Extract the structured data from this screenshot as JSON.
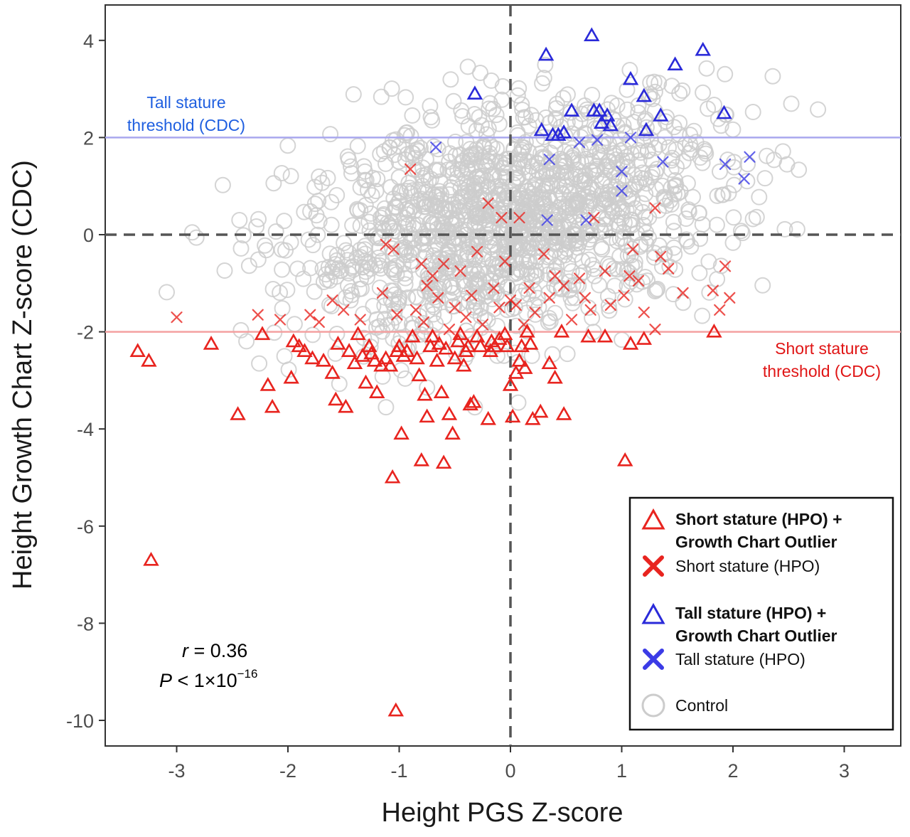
{
  "chart_data": {
    "type": "scatter",
    "xlabel": "Height PGS Z-score",
    "ylabel": "Height Growth Chart Z-score (CDC)",
    "xlim": [
      -3.65,
      3.45
    ],
    "ylim": [
      -10.5,
      4.75
    ],
    "x_ticks": [
      "-3",
      "-2",
      "-1",
      "0",
      "1",
      "2",
      "3"
    ],
    "y_ticks": [
      "4",
      "2",
      "0",
      "-2",
      "-4",
      "-6",
      "-8",
      "-10"
    ],
    "grid": false,
    "legend_position": "bottom-right",
    "reference_lines": [
      {
        "orientation": "vertical",
        "value": 0,
        "style": "dashed",
        "color": "#555555"
      },
      {
        "orientation": "horizontal",
        "value": 0,
        "style": "dashed",
        "color": "#555555"
      }
    ],
    "thresholds": [
      {
        "value": 2,
        "label_line1": "Tall stature",
        "label_line2": "threshold (CDC)",
        "color": "#1f5fe0",
        "line_color": "#a9a8ee"
      },
      {
        "value": -2,
        "label_line1": "Short stature",
        "label_line2": "threshold (CDC)",
        "color": "#e01515",
        "line_color": "#f4a0a0"
      }
    ],
    "annotation": {
      "r_symbol": "r",
      "r_text": " = 0.36",
      "p_symbol": "P",
      "p_text": " < 1×10",
      "p_exponent": "−16"
    },
    "legend": [
      {
        "marker": "triangle",
        "color": "#e8241f",
        "line1": "Short stature (HPO) +",
        "line2": "Growth Chart Outlier",
        "bold": true
      },
      {
        "marker": "cross",
        "color": "#e8241f",
        "line1": "Short stature (HPO)",
        "line2": "",
        "bold": false
      },
      {
        "marker": "triangle",
        "color": "#2a2ad9",
        "line1": "Tall stature (HPO) +",
        "line2": "Growth Chart Outlier",
        "bold": true
      },
      {
        "marker": "cross",
        "color": "#3b3be6",
        "line1": "Tall stature (HPO)",
        "line2": "",
        "bold": false
      },
      {
        "marker": "circle",
        "color": "#cccccc",
        "line1": "Control",
        "line2": "",
        "bold": false
      }
    ],
    "series": [
      {
        "name": "Short stature (HPO) + Growth Chart Outlier",
        "marker": "triangle",
        "color": "#e8241f",
        "points": [
          [
            -3.35,
            -2.4
          ],
          [
            -3.25,
            -2.6
          ],
          [
            -3.23,
            -6.7
          ],
          [
            -2.69,
            -2.25
          ],
          [
            -2.45,
            -3.7
          ],
          [
            -2.23,
            -2.05
          ],
          [
            -2.18,
            -3.1
          ],
          [
            -2.14,
            -3.55
          ],
          [
            -1.97,
            -2.95
          ],
          [
            -1.95,
            -2.2
          ],
          [
            -1.9,
            -2.3
          ],
          [
            -1.85,
            -2.4
          ],
          [
            -1.78,
            -2.55
          ],
          [
            -1.68,
            -2.6
          ],
          [
            -1.6,
            -2.85
          ],
          [
            -1.57,
            -3.4
          ],
          [
            -1.55,
            -2.25
          ],
          [
            -1.48,
            -3.55
          ],
          [
            -1.45,
            -2.4
          ],
          [
            -1.37,
            -2.05
          ],
          [
            -1.33,
            -2.5
          ],
          [
            -1.3,
            -3.05
          ],
          [
            -1.27,
            -2.3
          ],
          [
            -1.25,
            -2.45
          ],
          [
            -1.22,
            -2.6
          ],
          [
            -1.2,
            -3.25
          ],
          [
            -1.16,
            -2.7
          ],
          [
            -1.12,
            -2.55
          ],
          [
            -1.08,
            -2.7
          ],
          [
            -1.06,
            -5.0
          ],
          [
            -1.02,
            -2.4
          ],
          [
            -1.0,
            -2.3
          ],
          [
            -0.98,
            -4.1
          ],
          [
            -0.96,
            -2.5
          ],
          [
            -0.93,
            -2.4
          ],
          [
            -0.88,
            -2.1
          ],
          [
            -0.84,
            -2.55
          ],
          [
            -0.82,
            -2.9
          ],
          [
            -0.8,
            -4.65
          ],
          [
            -0.77,
            -3.3
          ],
          [
            -0.75,
            -3.75
          ],
          [
            -0.72,
            -2.3
          ],
          [
            -0.7,
            -2.1
          ],
          [
            -0.66,
            -2.6
          ],
          [
            -0.62,
            -3.25
          ],
          [
            -0.6,
            -4.7
          ],
          [
            -0.58,
            -2.35
          ],
          [
            -0.55,
            -3.7
          ],
          [
            -0.52,
            -4.1
          ],
          [
            -0.5,
            -2.55
          ],
          [
            -0.47,
            -2.2
          ],
          [
            -0.45,
            -2.05
          ],
          [
            -0.42,
            -2.7
          ],
          [
            -0.4,
            -2.4
          ],
          [
            -0.38,
            -2.3
          ],
          [
            -0.36,
            -3.5
          ],
          [
            -0.33,
            -3.45
          ],
          [
            -0.3,
            -2.1
          ],
          [
            -0.27,
            -2.3
          ],
          [
            -0.2,
            -3.8
          ],
          [
            -0.17,
            -2.2
          ],
          [
            -0.14,
            -2.3
          ],
          [
            -0.1,
            -2.15
          ],
          [
            -0.05,
            -2.05
          ],
          [
            -0.03,
            -2.3
          ],
          [
            0.0,
            -3.1
          ],
          [
            0.02,
            -3.75
          ],
          [
            0.05,
            -2.85
          ],
          [
            0.08,
            -2.6
          ],
          [
            0.1,
            -2.3
          ],
          [
            0.13,
            -2.75
          ],
          [
            0.15,
            -2.0
          ],
          [
            0.18,
            -2.25
          ],
          [
            0.2,
            -3.8
          ],
          [
            0.27,
            -3.65
          ],
          [
            0.35,
            -2.65
          ],
          [
            0.4,
            -2.95
          ],
          [
            0.46,
            -2.0
          ],
          [
            0.48,
            -3.7
          ],
          [
            0.7,
            -2.1
          ],
          [
            0.85,
            -2.1
          ],
          [
            1.03,
            -4.65
          ],
          [
            1.08,
            -2.25
          ],
          [
            1.2,
            -2.15
          ],
          [
            1.83,
            -2.0
          ],
          [
            -1.03,
            -9.8
          ],
          [
            -0.18,
            -2.4
          ],
          [
            -0.64,
            -2.25
          ],
          [
            -1.4,
            -2.65
          ]
        ]
      },
      {
        "name": "Short stature (HPO)",
        "marker": "cross",
        "color": "#e8241f",
        "points": [
          [
            -3.0,
            -1.7
          ],
          [
            -2.27,
            -1.65
          ],
          [
            -2.07,
            -1.75
          ],
          [
            -1.8,
            -1.65
          ],
          [
            -1.72,
            -1.8
          ],
          [
            -1.6,
            -1.35
          ],
          [
            -1.5,
            -1.55
          ],
          [
            -1.35,
            -1.75
          ],
          [
            -1.15,
            -1.2
          ],
          [
            -1.12,
            -0.2
          ],
          [
            -1.05,
            -0.3
          ],
          [
            -1.02,
            -1.65
          ],
          [
            -0.9,
            1.35
          ],
          [
            -0.85,
            -1.55
          ],
          [
            -0.8,
            -0.6
          ],
          [
            -0.75,
            -1.05
          ],
          [
            -0.7,
            -0.85
          ],
          [
            -0.65,
            -1.3
          ],
          [
            -0.6,
            -0.6
          ],
          [
            -0.55,
            -1.95
          ],
          [
            -0.5,
            -1.5
          ],
          [
            -0.45,
            -0.75
          ],
          [
            -0.4,
            -1.7
          ],
          [
            -0.35,
            -1.25
          ],
          [
            -0.3,
            -0.35
          ],
          [
            -0.25,
            -1.85
          ],
          [
            -0.2,
            0.65
          ],
          [
            -0.15,
            -1.1
          ],
          [
            -0.1,
            -1.5
          ],
          [
            -0.08,
            0.35
          ],
          [
            -0.05,
            -0.55
          ],
          [
            0.0,
            -1.35
          ],
          [
            0.05,
            -1.45
          ],
          [
            0.08,
            0.35
          ],
          [
            0.12,
            -1.85
          ],
          [
            0.17,
            -1.1
          ],
          [
            0.22,
            -1.6
          ],
          [
            0.3,
            -0.4
          ],
          [
            0.35,
            -1.3
          ],
          [
            0.4,
            -0.85
          ],
          [
            0.48,
            -1.05
          ],
          [
            0.55,
            -1.75
          ],
          [
            0.62,
            -0.9
          ],
          [
            0.67,
            -1.3
          ],
          [
            0.75,
            0.35
          ],
          [
            0.85,
            -0.75
          ],
          [
            0.9,
            -1.45
          ],
          [
            1.02,
            -1.25
          ],
          [
            1.1,
            -0.3
          ],
          [
            1.15,
            -0.95
          ],
          [
            1.2,
            -1.6
          ],
          [
            1.3,
            0.55
          ],
          [
            1.35,
            -0.45
          ],
          [
            1.42,
            -0.7
          ],
          [
            1.55,
            -1.2
          ],
          [
            1.82,
            -1.15
          ],
          [
            1.88,
            -1.55
          ],
          [
            1.93,
            -0.65
          ],
          [
            1.97,
            -1.3
          ],
          [
            -0.78,
            -1.8
          ],
          [
            0.72,
            -1.55
          ],
          [
            1.07,
            -0.85
          ],
          [
            1.3,
            -1.95
          ]
        ]
      },
      {
        "name": "Tall stature (HPO) + Growth Chart Outlier",
        "marker": "triangle",
        "color": "#2a2ad9",
        "points": [
          [
            -0.32,
            2.9
          ],
          [
            0.28,
            2.15
          ],
          [
            0.32,
            3.7
          ],
          [
            0.38,
            2.05
          ],
          [
            0.43,
            2.05
          ],
          [
            0.48,
            2.1
          ],
          [
            0.55,
            2.55
          ],
          [
            0.73,
            4.1
          ],
          [
            0.75,
            2.55
          ],
          [
            0.8,
            2.55
          ],
          [
            0.82,
            2.3
          ],
          [
            0.87,
            2.45
          ],
          [
            0.9,
            2.25
          ],
          [
            1.08,
            3.2
          ],
          [
            1.2,
            2.85
          ],
          [
            1.22,
            2.15
          ],
          [
            1.35,
            2.45
          ],
          [
            1.48,
            3.5
          ],
          [
            1.73,
            3.8
          ],
          [
            1.92,
            2.5
          ]
        ]
      },
      {
        "name": "Tall stature (HPO)",
        "marker": "cross",
        "color": "#3b3be6",
        "points": [
          [
            -0.67,
            1.8
          ],
          [
            0.33,
            0.3
          ],
          [
            0.35,
            1.55
          ],
          [
            0.62,
            1.9
          ],
          [
            0.68,
            0.3
          ],
          [
            0.78,
            1.95
          ],
          [
            1.0,
            1.3
          ],
          [
            1.0,
            0.9
          ],
          [
            1.08,
            2.0
          ],
          [
            1.37,
            1.5
          ],
          [
            1.93,
            1.45
          ],
          [
            2.1,
            1.15
          ],
          [
            2.15,
            1.6
          ]
        ]
      }
    ],
    "control": {
      "name": "Control",
      "marker": "circle",
      "color": "#cccccc",
      "count": 1500,
      "x_center": 0.0,
      "y_center": 0.3,
      "x_sd": 1.0,
      "y_sd": 1.2,
      "correlation": 0.36
    }
  }
}
